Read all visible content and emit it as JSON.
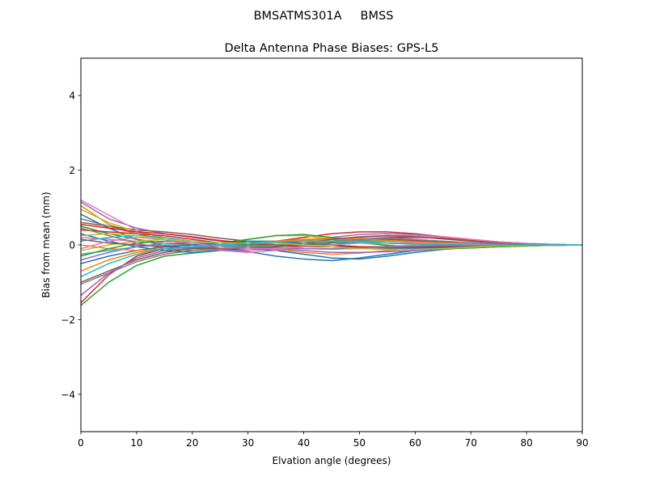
{
  "chart_data": {
    "type": "line",
    "suptitle": "BMSATMS301A     BMSS",
    "title": "Delta Antenna Phase Biases: GPS-L5",
    "xlabel": "Elvation angle (degrees)",
    "ylabel": "Bias from mean (mm)",
    "xlim": [
      0,
      90
    ],
    "ylim": [
      -5,
      5
    ],
    "xticks": [
      0,
      10,
      20,
      30,
      40,
      50,
      60,
      70,
      80,
      90
    ],
    "yticks": [
      -4,
      -2,
      0,
      2,
      4
    ],
    "ytick_labels": [
      "−4",
      "−2",
      "0",
      "2",
      "4"
    ],
    "grid": false,
    "legend": "none",
    "x": [
      0,
      5,
      10,
      15,
      20,
      25,
      30,
      35,
      40,
      45,
      50,
      55,
      60,
      65,
      70,
      75,
      80,
      85,
      90
    ],
    "series": [
      {
        "color": "#1f77b4",
        "values": [
          0.82,
          0.45,
          0.15,
          -0.02,
          -0.1,
          -0.1,
          -0.18,
          -0.3,
          -0.38,
          -0.42,
          -0.35,
          -0.25,
          -0.15,
          -0.1,
          -0.08,
          -0.05,
          -0.03,
          -0.01,
          0
        ]
      },
      {
        "color": "#ff7f0e",
        "values": [
          1.05,
          0.55,
          0.3,
          0.15,
          0.05,
          0.0,
          -0.05,
          -0.12,
          -0.2,
          -0.25,
          -0.22,
          -0.15,
          -0.1,
          -0.06,
          -0.04,
          -0.02,
          -0.01,
          0,
          0
        ]
      },
      {
        "color": "#2ca02c",
        "values": [
          -1.62,
          -1.0,
          -0.55,
          -0.3,
          -0.22,
          -0.15,
          -0.05,
          0.05,
          0.12,
          0.15,
          0.12,
          0.1,
          0.08,
          0.06,
          0.05,
          0.03,
          0.02,
          0.01,
          0
        ]
      },
      {
        "color": "#d62728",
        "values": [
          -1.55,
          -0.8,
          -0.3,
          -0.1,
          -0.05,
          -0.05,
          0.0,
          0.1,
          0.2,
          0.3,
          0.35,
          0.35,
          0.3,
          0.22,
          0.15,
          0.08,
          0.04,
          0.01,
          0
        ]
      },
      {
        "color": "#9467bd",
        "values": [
          1.15,
          0.7,
          0.45,
          0.3,
          0.2,
          0.1,
          0.05,
          0.05,
          0.1,
          0.2,
          0.28,
          0.3,
          0.28,
          0.22,
          0.15,
          0.08,
          0.04,
          0.01,
          0
        ]
      },
      {
        "color": "#8c564b",
        "values": [
          0.6,
          0.5,
          0.4,
          0.35,
          0.28,
          0.18,
          0.1,
          0.05,
          0.05,
          0.08,
          0.1,
          0.1,
          0.08,
          0.06,
          0.04,
          0.02,
          0.01,
          0,
          0
        ]
      },
      {
        "color": "#e377c2",
        "values": [
          1.2,
          0.8,
          0.4,
          0.15,
          0.0,
          -0.1,
          -0.15,
          -0.1,
          0.0,
          0.1,
          0.2,
          0.25,
          0.25,
          0.2,
          0.13,
          0.07,
          0.03,
          0.01,
          0
        ]
      },
      {
        "color": "#7f7f7f",
        "values": [
          -1.05,
          -0.75,
          -0.45,
          -0.25,
          -0.15,
          -0.1,
          -0.05,
          -0.03,
          -0.02,
          -0.05,
          -0.08,
          -0.1,
          -0.1,
          -0.08,
          -0.05,
          -0.03,
          -0.02,
          -0.01,
          0
        ]
      },
      {
        "color": "#bcbd22",
        "values": [
          0.95,
          0.6,
          0.35,
          0.2,
          0.1,
          0.05,
          0.15,
          0.25,
          0.25,
          0.15,
          0.05,
          0.0,
          -0.05,
          -0.05,
          -0.04,
          -0.03,
          -0.02,
          -0.01,
          0
        ]
      },
      {
        "color": "#17becf",
        "values": [
          -0.25,
          -0.15,
          -0.05,
          0.0,
          0.0,
          0.0,
          0.05,
          0.1,
          0.15,
          0.15,
          0.1,
          0.05,
          0.02,
          0.0,
          -0.02,
          -0.02,
          -0.01,
          0,
          0
        ]
      },
      {
        "color": "#1f77b4",
        "values": [
          0.3,
          0.1,
          -0.05,
          -0.15,
          -0.2,
          -0.15,
          -0.1,
          -0.15,
          -0.25,
          -0.35,
          -0.38,
          -0.3,
          -0.2,
          -0.12,
          -0.07,
          -0.04,
          -0.02,
          -0.01,
          0
        ]
      },
      {
        "color": "#ff7f0e",
        "values": [
          -0.7,
          -0.4,
          -0.2,
          -0.1,
          -0.05,
          0.0,
          0.05,
          0.1,
          0.15,
          0.18,
          0.18,
          0.15,
          0.1,
          0.06,
          0.04,
          0.02,
          0.01,
          0,
          0
        ]
      },
      {
        "color": "#2ca02c",
        "values": [
          0.5,
          0.3,
          0.15,
          0.05,
          0.0,
          0.05,
          0.15,
          0.25,
          0.28,
          0.2,
          0.08,
          -0.02,
          -0.08,
          -0.1,
          -0.08,
          -0.05,
          -0.03,
          -0.01,
          0
        ]
      },
      {
        "color": "#d62728",
        "values": [
          0.4,
          0.35,
          0.3,
          0.25,
          0.15,
          0.05,
          -0.05,
          -0.1,
          -0.05,
          0.05,
          0.15,
          0.2,
          0.2,
          0.18,
          0.12,
          0.06,
          0.03,
          0.01,
          0
        ]
      },
      {
        "color": "#9467bd",
        "values": [
          -0.4,
          -0.2,
          -0.05,
          0.05,
          0.05,
          0.0,
          -0.05,
          -0.1,
          -0.15,
          -0.2,
          -0.2,
          -0.18,
          -0.15,
          -0.1,
          -0.06,
          -0.03,
          -0.02,
          -0.01,
          0
        ]
      },
      {
        "color": "#8c564b",
        "values": [
          -1.0,
          -0.7,
          -0.4,
          -0.2,
          -0.1,
          -0.05,
          0.0,
          0.0,
          0.05,
          0.1,
          0.15,
          0.15,
          0.12,
          0.08,
          0.05,
          0.03,
          0.01,
          0,
          0
        ]
      },
      {
        "color": "#e377c2",
        "values": [
          0.2,
          0.15,
          0.1,
          0.05,
          -0.05,
          -0.15,
          -0.2,
          -0.15,
          -0.05,
          0.05,
          0.15,
          0.22,
          0.25,
          0.22,
          0.15,
          0.08,
          0.04,
          0.01,
          0
        ]
      },
      {
        "color": "#7f7f7f",
        "values": [
          0.7,
          0.5,
          0.3,
          0.15,
          0.05,
          0.0,
          0.0,
          0.05,
          0.05,
          0.0,
          -0.05,
          -0.08,
          -0.08,
          -0.06,
          -0.04,
          -0.02,
          -0.01,
          0,
          0
        ]
      },
      {
        "color": "#bcbd22",
        "values": [
          -0.15,
          0.0,
          0.1,
          0.15,
          0.1,
          0.05,
          0.0,
          -0.05,
          -0.1,
          -0.12,
          -0.1,
          -0.05,
          0.0,
          0.02,
          0.02,
          0.01,
          0.01,
          0,
          0
        ]
      },
      {
        "color": "#17becf",
        "values": [
          0.1,
          0.2,
          0.25,
          0.2,
          0.1,
          0.0,
          -0.05,
          -0.05,
          0.0,
          0.05,
          0.1,
          0.1,
          0.08,
          0.05,
          0.03,
          0.02,
          0.01,
          0,
          0
        ]
      },
      {
        "color": "#1f77b4",
        "values": [
          -0.5,
          -0.3,
          -0.15,
          -0.05,
          0.0,
          0.05,
          0.1,
          0.1,
          0.05,
          0.0,
          -0.05,
          -0.08,
          -0.08,
          -0.06,
          -0.04,
          -0.02,
          -0.01,
          0,
          0
        ]
      },
      {
        "color": "#ff7f0e",
        "values": [
          0.0,
          -0.1,
          -0.15,
          -0.1,
          -0.05,
          0.0,
          0.05,
          0.1,
          0.12,
          0.15,
          0.15,
          0.12,
          0.08,
          0.05,
          0.03,
          0.02,
          0.01,
          0,
          0
        ]
      },
      {
        "color": "#2ca02c",
        "values": [
          -0.3,
          -0.1,
          0.05,
          0.1,
          0.1,
          0.05,
          0.0,
          0.0,
          0.0,
          0.05,
          0.05,
          0.05,
          0.04,
          0.03,
          0.02,
          0.01,
          0.01,
          0,
          0
        ]
      },
      {
        "color": "#d62728",
        "values": [
          0.55,
          0.45,
          0.35,
          0.3,
          0.22,
          0.12,
          0.05,
          0.0,
          -0.05,
          -0.05,
          -0.05,
          -0.05,
          -0.05,
          -0.04,
          -0.03,
          -0.02,
          -0.01,
          0,
          0
        ]
      },
      {
        "color": "#9467bd",
        "values": [
          -1.35,
          -0.75,
          -0.35,
          -0.15,
          -0.08,
          -0.05,
          -0.05,
          -0.08,
          -0.1,
          -0.1,
          -0.08,
          -0.05,
          -0.03,
          -0.02,
          -0.01,
          -0.01,
          0,
          0,
          0
        ]
      },
      {
        "color": "#8c564b",
        "values": [
          0.15,
          0.05,
          0.0,
          -0.05,
          -0.08,
          -0.1,
          -0.1,
          -0.05,
          0.05,
          0.15,
          0.22,
          0.25,
          0.22,
          0.16,
          0.1,
          0.05,
          0.02,
          0.01,
          0
        ]
      },
      {
        "color": "#e377c2",
        "values": [
          -0.1,
          0.1,
          0.2,
          0.15,
          0.05,
          -0.05,
          -0.1,
          -0.1,
          -0.05,
          0.0,
          0.05,
          0.05,
          0.05,
          0.04,
          0.03,
          0.02,
          0.01,
          0,
          0
        ]
      },
      {
        "color": "#7f7f7f",
        "values": [
          0.45,
          0.25,
          0.05,
          -0.1,
          -0.15,
          -0.12,
          -0.05,
          0.0,
          0.05,
          0.1,
          0.15,
          0.18,
          0.15,
          0.1,
          0.06,
          0.03,
          0.01,
          0,
          0
        ]
      },
      {
        "color": "#bcbd22",
        "values": [
          0.25,
          0.3,
          0.25,
          0.15,
          0.1,
          0.05,
          0.05,
          0.05,
          0.0,
          -0.05,
          -0.1,
          -0.12,
          -0.12,
          -0.1,
          -0.06,
          -0.03,
          -0.02,
          -0.01,
          0
        ]
      },
      {
        "color": "#17becf",
        "values": [
          -0.85,
          -0.5,
          -0.25,
          -0.1,
          -0.05,
          0.0,
          0.05,
          0.08,
          0.1,
          0.1,
          0.08,
          0.05,
          0.02,
          0.0,
          -0.01,
          -0.01,
          0,
          0,
          0
        ]
      }
    ]
  }
}
